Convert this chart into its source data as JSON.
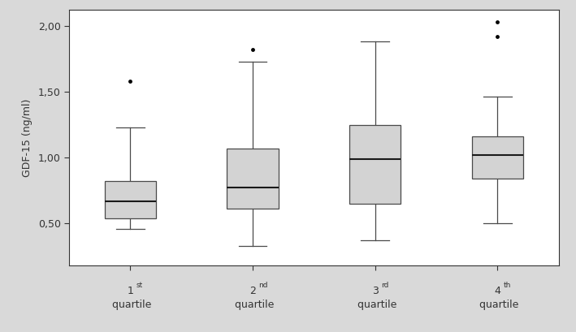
{
  "title": "",
  "ylabel": "GDF-15 (ng/ml)",
  "xlabel": "",
  "box_data": [
    {
      "q1": 0.54,
      "median": 0.67,
      "q3": 0.82,
      "whisker_low": 0.46,
      "whisker_high": 1.23,
      "fliers": [
        1.58
      ]
    },
    {
      "q1": 0.61,
      "median": 0.77,
      "q3": 1.07,
      "whisker_low": 0.33,
      "whisker_high": 1.73,
      "fliers": [
        1.82
      ]
    },
    {
      "q1": 0.65,
      "median": 0.99,
      "q3": 1.25,
      "whisker_low": 0.37,
      "whisker_high": 1.88,
      "fliers": []
    },
    {
      "q1": 0.84,
      "median": 1.02,
      "q3": 1.16,
      "whisker_low": 0.5,
      "whisker_high": 1.46,
      "fliers": [
        1.92,
        2.03
      ]
    }
  ],
  "ylim": [
    0.18,
    2.12
  ],
  "yticks": [
    0.5,
    1.0,
    1.5,
    2.0
  ],
  "ytick_labels": [
    "0,50",
    "1,00",
    "1,50",
    "2,00"
  ],
  "box_color": "#d3d3d3",
  "box_edge_color": "#4a4a4a",
  "median_color": "#1a1a1a",
  "whisker_color": "#4a4a4a",
  "flier_color": "#000000",
  "background_color": "#ffffff",
  "outer_background": "#d9d9d9",
  "box_width": 0.42,
  "linewidth": 0.9
}
